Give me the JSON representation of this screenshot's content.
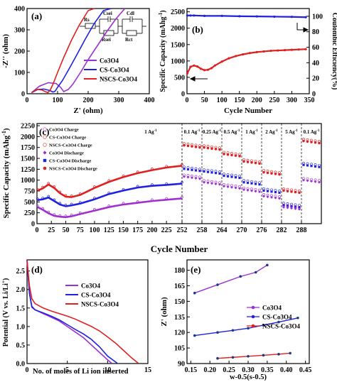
{
  "chart_data": [
    {
      "panel": "(a)",
      "type": "line",
      "xlabel": "Z' (ohm)",
      "ylabel": "-Z'' (ohm)",
      "xticks": [
        "0",
        "100",
        "200",
        "300",
        "400"
      ],
      "yticks": [
        "0",
        "100",
        "200",
        "300",
        "400"
      ],
      "xlim": [
        0,
        400
      ],
      "ylim": [
        0,
        400
      ],
      "circuit_labels": [
        "Rs",
        "Csei",
        "Rsei",
        "Cdl",
        "Rct"
      ],
      "series": [
        {
          "name": "Co3O4",
          "color": "#9b30d0",
          "x": [
            15,
            40,
            70,
            95,
            110,
            120,
            135,
            150,
            175,
            200,
            230,
            260,
            290,
            320
          ],
          "y": [
            5,
            35,
            52,
            48,
            30,
            10,
            20,
            45,
            100,
            160,
            225,
            290,
            350,
            400
          ]
        },
        {
          "name": "CS-Co3O4",
          "color": "#2020e0",
          "x": [
            15,
            35,
            55,
            75,
            85,
            92,
            100,
            115,
            135,
            160,
            190,
            220,
            250,
            275
          ],
          "y": [
            5,
            20,
            22,
            15,
            8,
            12,
            30,
            60,
            110,
            175,
            255,
            330,
            390,
            400
          ]
        },
        {
          "name": "NSCS-Co3O4",
          "color": "#e02020",
          "x": [
            15,
            25,
            35,
            48,
            60,
            68,
            75,
            85,
            100,
            120,
            145,
            170,
            200,
            220
          ],
          "y": [
            5,
            15,
            20,
            18,
            10,
            5,
            15,
            45,
            100,
            170,
            250,
            320,
            390,
            400
          ]
        }
      ]
    },
    {
      "panel": "(b)",
      "type": "scatter",
      "xlabel": "Cycle Number",
      "ylabel": "Specific Capacity (mAhg",
      "ylabel_sup": "-1",
      "ylabel_close": ")",
      "y2label": "Coulombic Efficiency(%)",
      "xticks": [
        "0",
        "50",
        "100",
        "150",
        "200",
        "250",
        "300",
        "350"
      ],
      "yticks": [
        "0",
        "500",
        "1000",
        "1500",
        "2000",
        "2500"
      ],
      "y2ticks": [
        "0",
        "20",
        "40",
        "60",
        "80",
        "100"
      ],
      "xlim": [
        0,
        350
      ],
      "ylim": [
        0,
        2600
      ],
      "y2lim": [
        0,
        110
      ],
      "series": [
        {
          "name": "Capacity",
          "color": "#e02020",
          "x": [
            1,
            10,
            20,
            30,
            40,
            50,
            60,
            70,
            80,
            100,
            120,
            140,
            160,
            180,
            200,
            220,
            240,
            260,
            280,
            300,
            320,
            340
          ],
          "y": [
            620,
            820,
            860,
            830,
            760,
            720,
            730,
            780,
            860,
            980,
            1080,
            1150,
            1200,
            1240,
            1270,
            1290,
            1310,
            1320,
            1330,
            1340,
            1350,
            1360
          ]
        },
        {
          "name": "Coulombic Efficiency",
          "color": "#2020e0",
          "x": [
            1,
            10,
            20,
            50,
            100,
            150,
            200,
            250,
            300,
            340
          ],
          "y": [
            101,
            101,
            101,
            100.5,
            100.5,
            100,
            99.8,
            99.5,
            99.2,
            98.8
          ]
        }
      ]
    },
    {
      "panel": "(c)",
      "type": "scatter",
      "xlabel": "Cycle Number",
      "ylabel": "Specific Capacity (mAhg",
      "ylabel_sup": "-1",
      "ylabel_close": ")",
      "xticks": [
        "0",
        "25",
        "50",
        "75",
        "100",
        "125",
        "150",
        "175",
        "200",
        "225",
        "252",
        "258",
        "264",
        "270",
        "276",
        "282",
        "288"
      ],
      "yticks": [
        "0",
        "250",
        "500",
        "750",
        "1000",
        "1250",
        "1500",
        "1750",
        "2000",
        "2250"
      ],
      "ylim": [
        0,
        2300
      ],
      "rate_labels": [
        "1 Ag",
        "0.1 Ag",
        "0.25 Ag",
        "0.5 Ag",
        "1 Ag",
        "2 Ag",
        "5 Ag",
        "0.1 Ag"
      ],
      "rate_sup": "-1",
      "legend": [
        {
          "label": "Co3O4 Charge",
          "color": "#e070d0",
          "marker": "circle-open"
        },
        {
          "label": "CS-Co3O4 Charge",
          "color": "#e07070",
          "marker": "circle-open"
        },
        {
          "label": "NSCS-Co3O4 Charge",
          "color": "#e07070",
          "marker": "circle-open"
        },
        {
          "label": "Co3O4 Discharge",
          "color": "#a030d0",
          "marker": "diamond"
        },
        {
          "label": "CS-Co3O4 Discharge",
          "color": "#2020e0",
          "marker": "square"
        },
        {
          "label": "NSCS-Co3O4 Discharge",
          "color": "#e02020",
          "marker": "circle"
        }
      ],
      "long_cycling": [
        {
          "name": "NSCS-Co3O4",
          "color": "#e02020",
          "x": [
            1,
            10,
            20,
            30,
            40,
            50,
            60,
            75,
            100,
            125,
            150,
            175,
            200,
            225,
            252
          ],
          "y": [
            760,
            810,
            900,
            820,
            700,
            620,
            610,
            660,
            820,
            960,
            1070,
            1160,
            1230,
            1290,
            1330
          ]
        },
        {
          "name": "CS-Co3O4",
          "color": "#2020e0",
          "x": [
            1,
            10,
            20,
            30,
            40,
            50,
            60,
            75,
            100,
            125,
            150,
            175,
            200,
            225,
            252
          ],
          "y": [
            540,
            560,
            600,
            520,
            440,
            400,
            420,
            460,
            560,
            680,
            760,
            830,
            870,
            890,
            920
          ]
        },
        {
          "name": "Co3O4",
          "color": "#a030d0",
          "x": [
            1,
            10,
            20,
            30,
            40,
            50,
            60,
            75,
            100,
            125,
            150,
            175,
            200,
            225,
            252
          ],
          "y": [
            380,
            320,
            240,
            180,
            160,
            150,
            170,
            220,
            300,
            380,
            440,
            480,
            520,
            550,
            580
          ]
        }
      ],
      "rate_cycling": [
        {
          "name": "NSCS-Co3O4",
          "color": "#e02020",
          "values": [
            1800,
            1750,
            1600,
            1430,
            1180,
            760,
            1900
          ]
        },
        {
          "name": "CS-Co3O4",
          "color": "#2020e0",
          "values": [
            1260,
            1200,
            1100,
            950,
            760,
            430,
            1350
          ]
        },
        {
          "name": "Co3O4",
          "color": "#a030d0",
          "values": [
            1080,
            950,
            860,
            780,
            630,
            380,
            1000
          ]
        }
      ]
    },
    {
      "panel": "(d)",
      "type": "line",
      "xlabel": "No. of moles of Li ion inserted",
      "ylabel": "Potential (V vs. Li/Li",
      "ylabel_sup": "+",
      "ylabel_close": ")",
      "yticks": [
        "0.0",
        "0.5",
        "1.0",
        "1.5",
        "2.0",
        "2.5"
      ],
      "xticks": [
        "0",
        "5",
        "10",
        "15"
      ],
      "xlim": [
        0,
        15
      ],
      "ylim": [
        0,
        2.8
      ],
      "series": [
        {
          "name": "Co3O4",
          "color": "#9b30d0",
          "x": [
            0,
            0.3,
            0.6,
            1,
            2,
            3,
            4,
            5,
            6,
            7,
            8,
            9,
            10,
            10.5
          ],
          "y": [
            2.8,
            1.9,
            1.55,
            1.45,
            1.35,
            1.25,
            1.15,
            1.0,
            0.85,
            0.7,
            0.5,
            0.3,
            0.1,
            0.01
          ]
        },
        {
          "name": "CS-Co3O4",
          "color": "#2020e0",
          "x": [
            0,
            0.3,
            0.6,
            1,
            2,
            3,
            4,
            5,
            6,
            7,
            8,
            9,
            10,
            11.2
          ],
          "y": [
            2.8,
            1.9,
            1.52,
            1.45,
            1.37,
            1.28,
            1.18,
            1.05,
            0.92,
            0.8,
            0.65,
            0.45,
            0.2,
            0.01
          ]
        },
        {
          "name": "NSCS-Co3O4",
          "color": "#e02020",
          "x": [
            0,
            0.3,
            0.6,
            1,
            2,
            3,
            4,
            5,
            6,
            7,
            8,
            9,
            10,
            11,
            12,
            13,
            13.8
          ],
          "y": [
            2.8,
            2.1,
            1.75,
            1.62,
            1.5,
            1.42,
            1.35,
            1.28,
            1.2,
            1.1,
            1.0,
            0.88,
            0.72,
            0.55,
            0.35,
            0.15,
            0.01
          ]
        }
      ]
    },
    {
      "panel": "(e)",
      "type": "scatter",
      "xlabel": "w-0.5(s-0.5)",
      "ylabel": "Z' (ohm)",
      "xticks": [
        "0.15",
        "0.20",
        "0.25",
        "0.30",
        "0.35",
        "0.40",
        "0.45"
      ],
      "yticks": [
        "90",
        "105",
        "120",
        "135",
        "150",
        "165",
        "180"
      ],
      "xlim": [
        0.14,
        0.46
      ],
      "ylim": [
        90,
        190
      ],
      "series": [
        {
          "name": "Co3O4",
          "color": "#9b30d0",
          "x": [
            0.16,
            0.22,
            0.28,
            0.32,
            0.35
          ],
          "y": [
            158,
            166,
            174,
            178,
            185
          ]
        },
        {
          "name": "CS-Co3O4",
          "color": "#2020e0",
          "x": [
            0.16,
            0.22,
            0.26,
            0.3,
            0.34,
            0.38,
            0.43
          ],
          "y": [
            117,
            120,
            122,
            124,
            127,
            130,
            134
          ]
        },
        {
          "name": "NSCS-Co3O4",
          "color": "#e02020",
          "x": [
            0.22,
            0.26,
            0.3,
            0.34,
            0.38,
            0.41
          ],
          "y": [
            95,
            96,
            97,
            98,
            99,
            100
          ]
        }
      ]
    }
  ]
}
